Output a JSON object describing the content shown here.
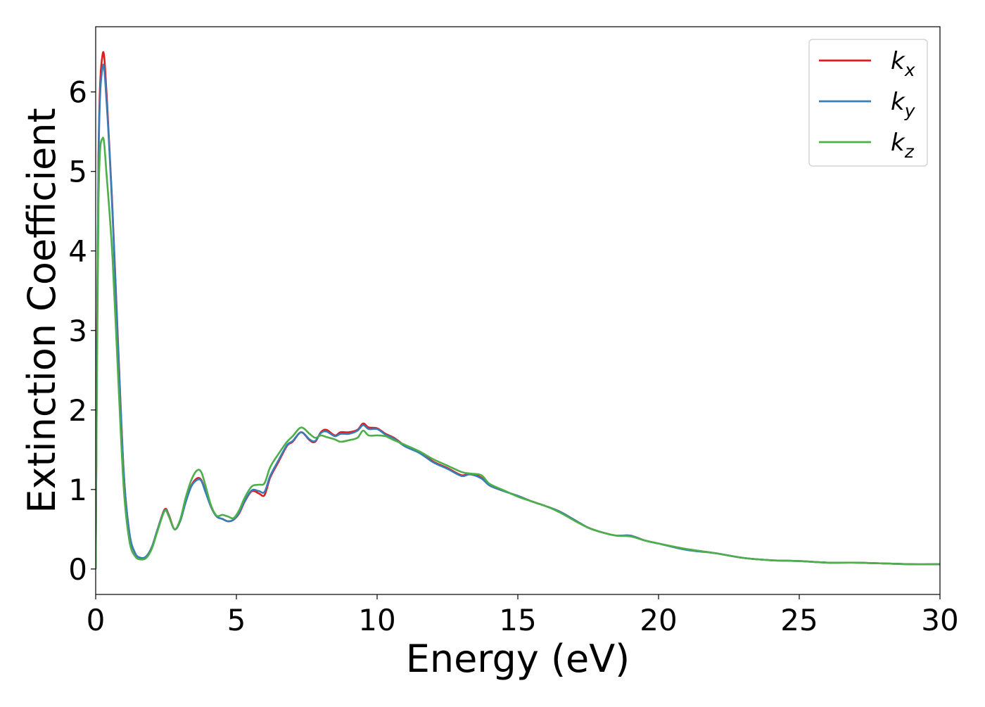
{
  "chart_data": {
    "type": "line",
    "title": "",
    "xlabel": "Energy (eV)",
    "ylabel": "Extinction Coefficient",
    "xlim": [
      0,
      30
    ],
    "ylim": [
      -0.32,
      6.82
    ],
    "xticks": [
      "0",
      "5",
      "10",
      "15",
      "20",
      "25",
      "30"
    ],
    "yticks": [
      "0",
      "1",
      "2",
      "3",
      "4",
      "5",
      "6"
    ],
    "grid": false,
    "legend_position": "top-right",
    "series": [
      {
        "name": "k_x",
        "color": "#e41a1c",
        "x": [
          0,
          0.1,
          0.25,
          0.4,
          0.6,
          0.8,
          1.0,
          1.2,
          1.4,
          1.6,
          1.8,
          2.0,
          2.2,
          2.45,
          2.6,
          2.8,
          3.0,
          3.2,
          3.4,
          3.6,
          3.75,
          3.9,
          4.1,
          4.3,
          4.5,
          4.7,
          4.9,
          5.1,
          5.3,
          5.55,
          5.8,
          6.0,
          6.2,
          6.5,
          6.8,
          7.0,
          7.3,
          7.6,
          7.8,
          8.0,
          8.2,
          8.5,
          8.7,
          9.0,
          9.3,
          9.5,
          9.7,
          10.0,
          10.3,
          10.6,
          11.0,
          11.5,
          12.0,
          12.5,
          13.0,
          13.3,
          13.7,
          14.0,
          14.5,
          15.0,
          15.5,
          16.0,
          16.5,
          17.0,
          17.5,
          18.0,
          18.5,
          19.0,
          19.5,
          20.0,
          21.0,
          22.0,
          23.0,
          24.0,
          25.0,
          26.0,
          27.0,
          28.0,
          29.0,
          30.0
        ],
        "values": [
          0.0,
          5.2,
          6.48,
          5.9,
          4.5,
          2.8,
          1.2,
          0.45,
          0.2,
          0.14,
          0.16,
          0.28,
          0.5,
          0.75,
          0.68,
          0.5,
          0.6,
          0.85,
          1.05,
          1.14,
          1.12,
          0.98,
          0.78,
          0.66,
          0.63,
          0.6,
          0.62,
          0.7,
          0.85,
          0.98,
          0.95,
          0.93,
          1.15,
          1.35,
          1.55,
          1.6,
          1.72,
          1.62,
          1.6,
          1.72,
          1.75,
          1.68,
          1.72,
          1.72,
          1.75,
          1.83,
          1.78,
          1.77,
          1.7,
          1.65,
          1.55,
          1.47,
          1.35,
          1.27,
          1.18,
          1.2,
          1.15,
          1.05,
          0.98,
          0.92,
          0.85,
          0.79,
          0.72,
          0.62,
          0.52,
          0.46,
          0.42,
          0.42,
          0.36,
          0.32,
          0.25,
          0.2,
          0.14,
          0.11,
          0.1,
          0.08,
          0.08,
          0.07,
          0.06,
          0.06
        ]
      },
      {
        "name": "k_y",
        "color": "#377eb8",
        "x": [
          0,
          0.1,
          0.25,
          0.4,
          0.6,
          0.8,
          1.0,
          1.2,
          1.4,
          1.6,
          1.8,
          2.0,
          2.2,
          2.45,
          2.6,
          2.8,
          3.0,
          3.2,
          3.4,
          3.6,
          3.75,
          3.9,
          4.1,
          4.3,
          4.5,
          4.7,
          4.9,
          5.1,
          5.3,
          5.55,
          5.8,
          6.0,
          6.2,
          6.5,
          6.8,
          7.0,
          7.3,
          7.6,
          7.8,
          8.0,
          8.2,
          8.5,
          8.7,
          9.0,
          9.3,
          9.5,
          9.7,
          10.0,
          10.3,
          10.6,
          11.0,
          11.5,
          12.0,
          12.5,
          13.0,
          13.3,
          13.7,
          14.0,
          14.5,
          15.0,
          15.5,
          16.0,
          16.5,
          17.0,
          17.5,
          18.0,
          18.5,
          19.0,
          19.5,
          20.0,
          21.0,
          22.0,
          23.0,
          24.0,
          25.0,
          26.0,
          27.0,
          28.0,
          29.0,
          30.0
        ],
        "values": [
          0.0,
          5.1,
          6.32,
          5.8,
          4.45,
          2.75,
          1.18,
          0.45,
          0.2,
          0.14,
          0.16,
          0.28,
          0.5,
          0.74,
          0.67,
          0.5,
          0.6,
          0.84,
          1.04,
          1.12,
          1.11,
          0.97,
          0.78,
          0.66,
          0.63,
          0.6,
          0.62,
          0.71,
          0.86,
          0.99,
          0.98,
          0.97,
          1.17,
          1.37,
          1.56,
          1.61,
          1.72,
          1.63,
          1.61,
          1.71,
          1.73,
          1.67,
          1.7,
          1.7,
          1.74,
          1.81,
          1.76,
          1.76,
          1.69,
          1.64,
          1.54,
          1.46,
          1.34,
          1.26,
          1.17,
          1.19,
          1.14,
          1.05,
          0.98,
          0.92,
          0.85,
          0.79,
          0.72,
          0.62,
          0.52,
          0.46,
          0.42,
          0.42,
          0.36,
          0.32,
          0.24,
          0.2,
          0.14,
          0.11,
          0.1,
          0.08,
          0.08,
          0.07,
          0.06,
          0.06
        ]
      },
      {
        "name": "k_z",
        "color": "#4daf4a",
        "x": [
          0,
          0.1,
          0.25,
          0.4,
          0.6,
          0.8,
          1.0,
          1.2,
          1.4,
          1.6,
          1.8,
          2.0,
          2.2,
          2.45,
          2.6,
          2.8,
          3.0,
          3.2,
          3.4,
          3.6,
          3.75,
          3.9,
          4.1,
          4.3,
          4.5,
          4.7,
          4.9,
          5.1,
          5.3,
          5.55,
          5.8,
          6.0,
          6.2,
          6.5,
          6.8,
          7.0,
          7.3,
          7.6,
          7.8,
          8.0,
          8.2,
          8.5,
          8.7,
          9.0,
          9.3,
          9.5,
          9.7,
          10.0,
          10.3,
          10.6,
          11.0,
          11.5,
          12.0,
          12.5,
          13.0,
          13.3,
          13.7,
          14.0,
          14.5,
          15.0,
          15.5,
          16.0,
          16.5,
          17.0,
          17.5,
          18.0,
          18.5,
          19.0,
          19.5,
          20.0,
          21.0,
          22.0,
          23.0,
          24.0,
          25.0,
          26.0,
          27.0,
          28.0,
          29.0,
          30.0
        ],
        "values": [
          0.0,
          4.6,
          5.42,
          4.9,
          3.9,
          2.4,
          1.0,
          0.35,
          0.16,
          0.12,
          0.14,
          0.26,
          0.48,
          0.73,
          0.66,
          0.5,
          0.62,
          0.9,
          1.12,
          1.24,
          1.22,
          1.05,
          0.8,
          0.67,
          0.68,
          0.66,
          0.64,
          0.74,
          0.9,
          1.04,
          1.06,
          1.08,
          1.28,
          1.45,
          1.6,
          1.67,
          1.78,
          1.7,
          1.65,
          1.68,
          1.66,
          1.63,
          1.6,
          1.62,
          1.65,
          1.74,
          1.68,
          1.68,
          1.67,
          1.62,
          1.56,
          1.48,
          1.38,
          1.3,
          1.22,
          1.2,
          1.18,
          1.07,
          0.99,
          0.91,
          0.85,
          0.79,
          0.71,
          0.61,
          0.52,
          0.46,
          0.42,
          0.41,
          0.36,
          0.32,
          0.25,
          0.2,
          0.14,
          0.11,
          0.1,
          0.08,
          0.08,
          0.07,
          0.06,
          0.06
        ]
      }
    ]
  },
  "legend": {
    "items": [
      {
        "base": "k",
        "sub": "x",
        "color": "#e41a1c"
      },
      {
        "base": "k",
        "sub": "y",
        "color": "#377eb8"
      },
      {
        "base": "k",
        "sub": "z",
        "color": "#4daf4a"
      }
    ]
  }
}
